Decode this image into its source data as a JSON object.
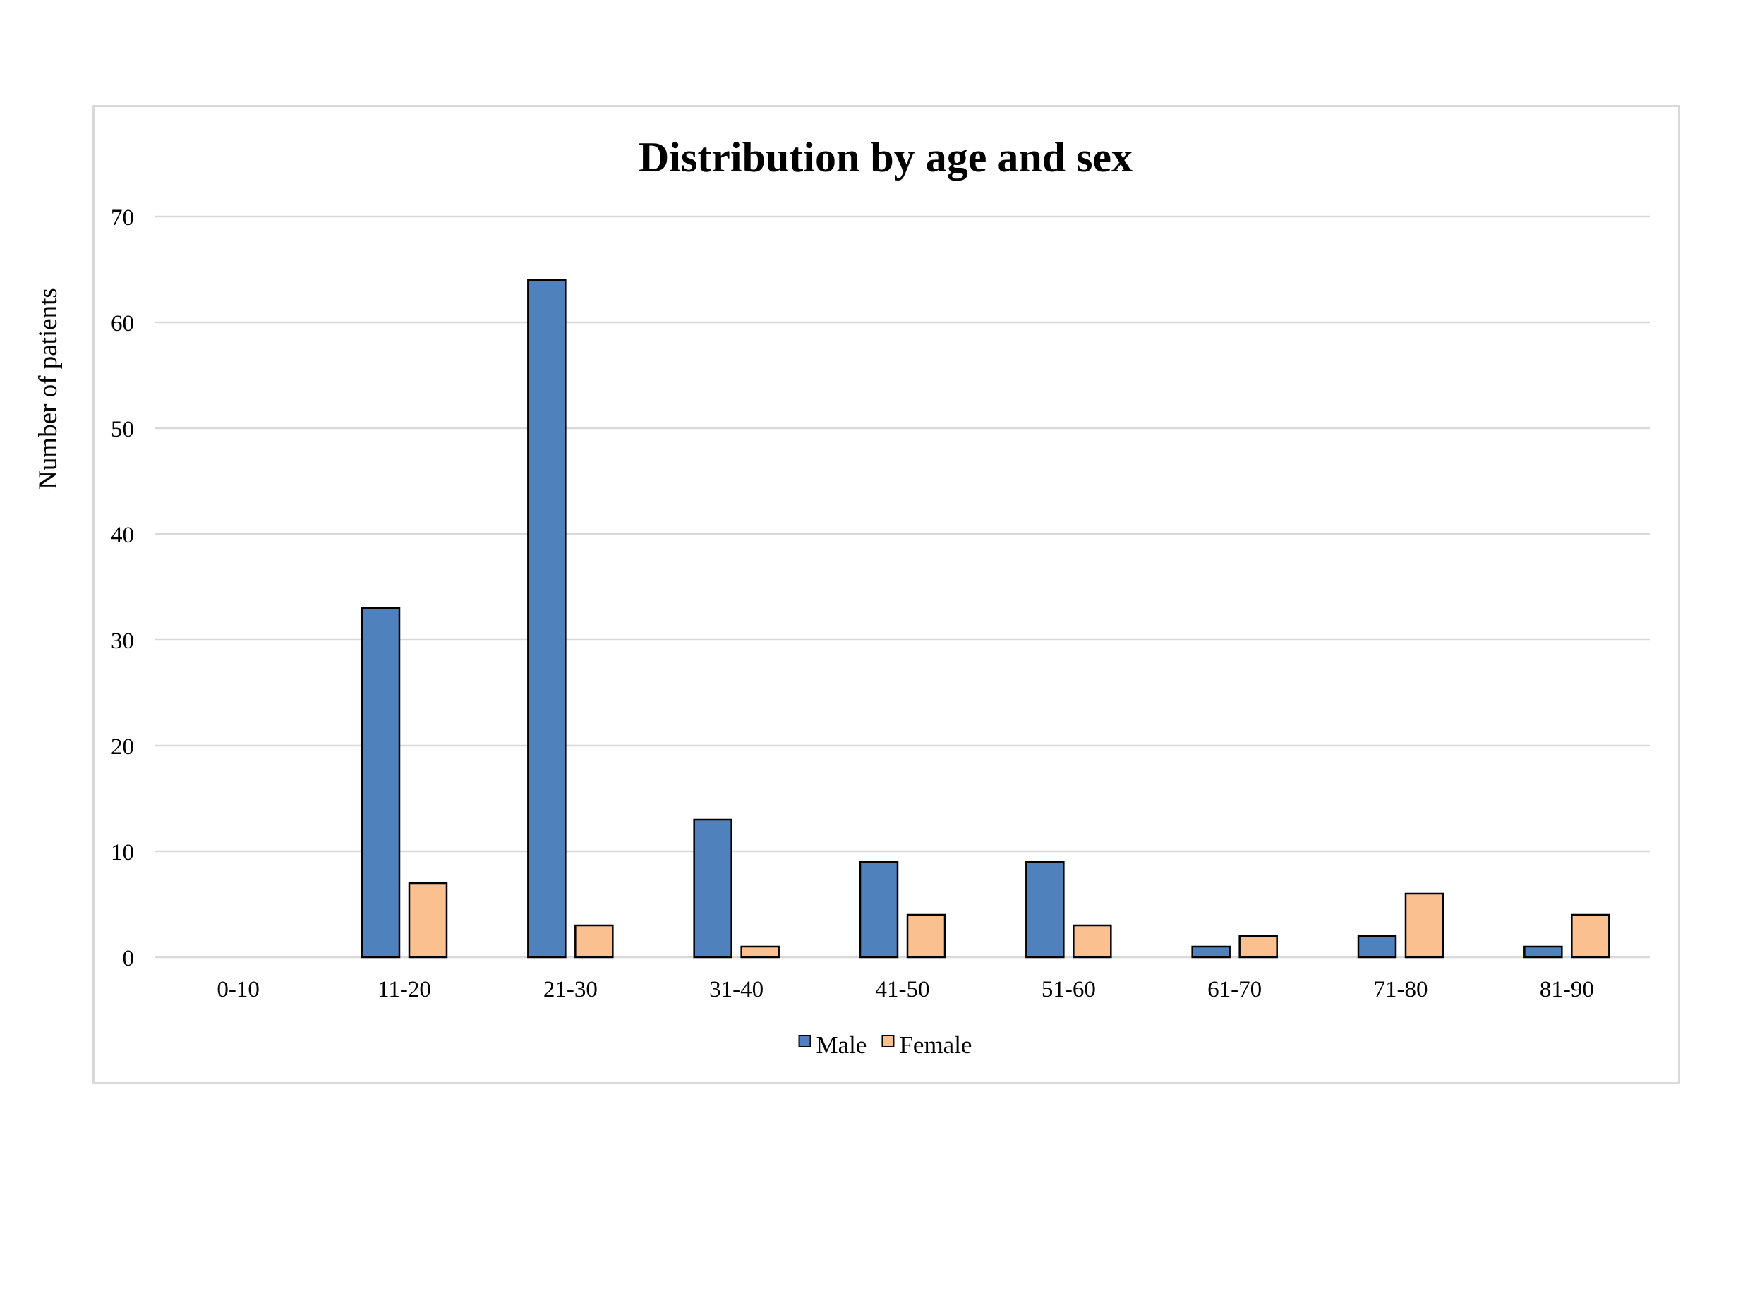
{
  "chart_data": {
    "type": "bar",
    "title": "Distribution by age and sex",
    "xlabel": "",
    "ylabel": "Number of patients",
    "categories": [
      "0-10",
      "11-20",
      "21-30",
      "31-40",
      "41-50",
      "51-60",
      "61-70",
      "71-80",
      "81-90"
    ],
    "series": [
      {
        "name": "Male",
        "color": "#4f81bd",
        "values": [
          0,
          33,
          64,
          13,
          9,
          9,
          1,
          2,
          1
        ]
      },
      {
        "name": "Female",
        "color": "#fac090",
        "values": [
          0,
          7,
          3,
          1,
          4,
          3,
          2,
          6,
          4
        ]
      }
    ],
    "ylim": [
      0,
      70
    ],
    "yticks": [
      0,
      10,
      20,
      30,
      40,
      50,
      60,
      70
    ],
    "grid": true,
    "legend_position": "bottom"
  }
}
